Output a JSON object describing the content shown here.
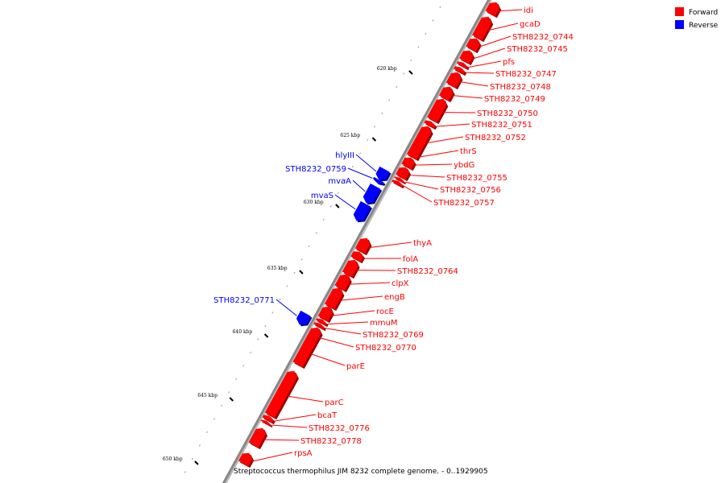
{
  "legend": [
    {
      "label": "Forward",
      "color": "#ff0000"
    },
    {
      "label": "Reverse",
      "color": "#0000ff"
    }
  ],
  "caption": "Streptococcus thermophilus JIM 8232 complete genome. - 0..1929905",
  "colors": {
    "forward": "#ff0000",
    "reverse": "#0000ff",
    "backbone": "#888888"
  },
  "scale": [
    {
      "label": "620 kbp"
    },
    {
      "label": "625 kbp"
    },
    {
      "label": "630 kbp"
    },
    {
      "label": "635 kbp"
    },
    {
      "label": "640 kbp"
    },
    {
      "label": "645 kbp"
    },
    {
      "label": "650 kbp"
    }
  ],
  "genes": [
    {
      "name": "idi",
      "strand": "forward"
    },
    {
      "name": "gcaD",
      "strand": "forward"
    },
    {
      "name": "STH8232_0744",
      "strand": "forward"
    },
    {
      "name": "STH8232_0745",
      "strand": "forward"
    },
    {
      "name": "pfs",
      "strand": "forward"
    },
    {
      "name": "STH8232_0747",
      "strand": "forward"
    },
    {
      "name": "STH8232_0748",
      "strand": "forward"
    },
    {
      "name": "STH8232_0749",
      "strand": "forward"
    },
    {
      "name": "STH8232_0750",
      "strand": "forward"
    },
    {
      "name": "STH8232_0751",
      "strand": "forward"
    },
    {
      "name": "STH8232_0752",
      "strand": "forward"
    },
    {
      "name": "thrS",
      "strand": "forward"
    },
    {
      "name": "ybdG",
      "strand": "forward"
    },
    {
      "name": "STH8232_0755",
      "strand": "forward"
    },
    {
      "name": "STH8232_0756",
      "strand": "forward"
    },
    {
      "name": "STH8232_0757",
      "strand": "forward"
    },
    {
      "name": "hlyIII",
      "strand": "reverse"
    },
    {
      "name": "STH8232_0759",
      "strand": "reverse"
    },
    {
      "name": "mvaA",
      "strand": "reverse"
    },
    {
      "name": "mvaS",
      "strand": "reverse"
    },
    {
      "name": "thyA",
      "strand": "forward"
    },
    {
      "name": "folA",
      "strand": "forward"
    },
    {
      "name": "STH8232_0764",
      "strand": "forward"
    },
    {
      "name": "clpX",
      "strand": "forward"
    },
    {
      "name": "engB",
      "strand": "forward"
    },
    {
      "name": "rocE",
      "strand": "forward"
    },
    {
      "name": "mmuM",
      "strand": "forward"
    },
    {
      "name": "STH8232_0769",
      "strand": "forward"
    },
    {
      "name": "STH8232_0770",
      "strand": "forward"
    },
    {
      "name": "STH8232_0771",
      "strand": "reverse"
    },
    {
      "name": "parE",
      "strand": "forward"
    },
    {
      "name": "parC",
      "strand": "forward"
    },
    {
      "name": "bcaT",
      "strand": "forward"
    },
    {
      "name": "STH8232_0776",
      "strand": "forward"
    },
    {
      "name": "STH8232_0778",
      "strand": "forward"
    },
    {
      "name": "rpsA",
      "strand": "forward"
    }
  ]
}
